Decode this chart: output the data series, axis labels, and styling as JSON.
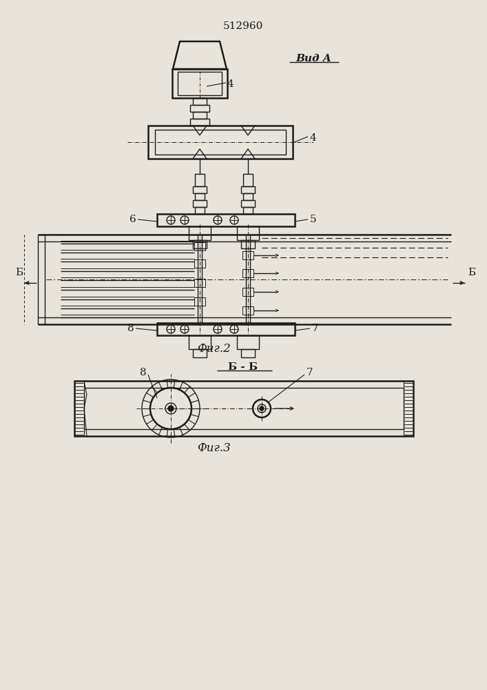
{
  "title": "512960",
  "fig2_label": "Фиг.2",
  "fig3_label": "Фиг.3",
  "vid_a_label": "Вид A",
  "bb_label": "Б - Б",
  "bg_color": "#e8e4dc",
  "line_color": "#1a1a1a",
  "lw": 1.0,
  "lw2": 1.8
}
